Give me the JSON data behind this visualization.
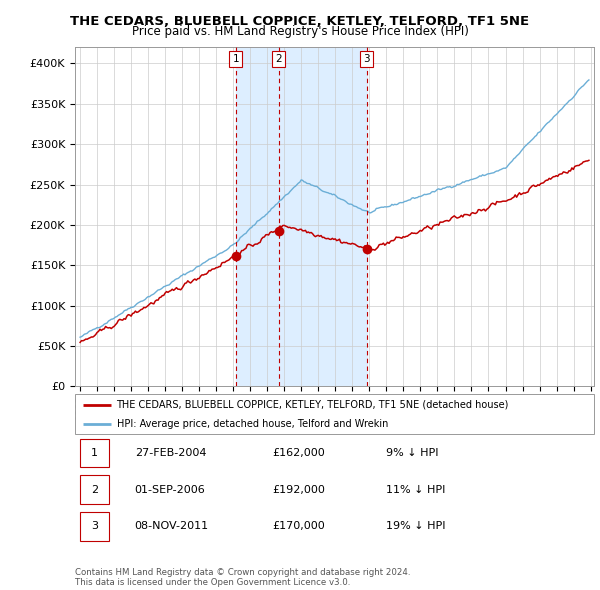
{
  "title": "THE CEDARS, BLUEBELL COPPICE, KETLEY, TELFORD, TF1 5NE",
  "subtitle": "Price paid vs. HM Land Registry's House Price Index (HPI)",
  "hpi_label": "HPI: Average price, detached house, Telford and Wrekin",
  "property_label": "THE CEDARS, BLUEBELL COPPICE, KETLEY, TELFORD, TF1 5NE (detached house)",
  "sales": [
    {
      "num": 1,
      "date_num": 2004.15,
      "price": 162000,
      "label": "1",
      "pct": "9%",
      "date_str": "27-FEB-2004"
    },
    {
      "num": 2,
      "date_num": 2006.67,
      "price": 192000,
      "label": "2",
      "pct": "11%",
      "date_str": "01-SEP-2006"
    },
    {
      "num": 3,
      "date_num": 2011.85,
      "price": 170000,
      "label": "3",
      "pct": "19%",
      "date_str": "08-NOV-2011"
    }
  ],
  "hpi_color": "#6baed6",
  "price_color": "#c00000",
  "sale_marker_color": "#c00000",
  "dashed_line_color": "#c00000",
  "shade_color": "#ddeeff",
  "background_color": "#ffffff",
  "grid_color": "#cccccc",
  "ylim": [
    0,
    420000
  ],
  "xlim_start": 1994.7,
  "xlim_end": 2025.2,
  "yticks": [
    0,
    50000,
    100000,
    150000,
    200000,
    250000,
    300000,
    350000,
    400000
  ],
  "ytick_labels": [
    "£0",
    "£50K",
    "£100K",
    "£150K",
    "£200K",
    "£250K",
    "£300K",
    "£350K",
    "£400K"
  ],
  "footer_line1": "Contains HM Land Registry data © Crown copyright and database right 2024.",
  "footer_line2": "This data is licensed under the Open Government Licence v3.0."
}
